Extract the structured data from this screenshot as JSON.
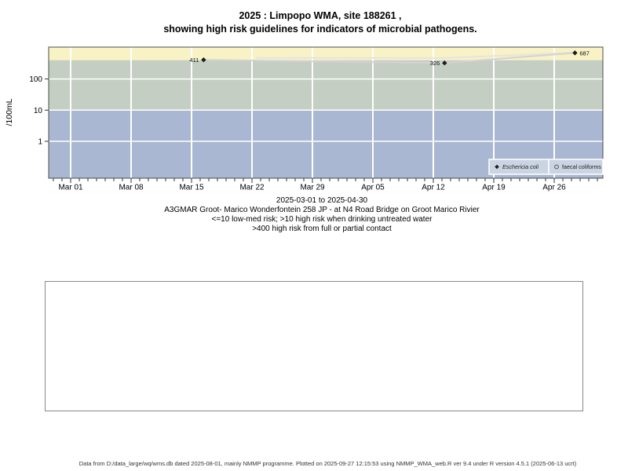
{
  "header": {
    "title_line1": "2025 : Limpopo WMA, site 188261 ,",
    "title_line2": "showing high risk guidelines for indicators of microbial pathogens."
  },
  "caption": {
    "lines": [
      "2025-03-01 to 2025-04-30",
      "A3GMAR Groot- Marico Wonderfontein 258 JP - at N4 Road Bridge on Groot Marico Rivier",
      "<=10 low-med risk; >10 high risk when drinking untreated water",
      ">400 high risk from full or partial contact"
    ]
  },
  "footer": {
    "text": "Data from D:/data_large/wq/wms.db dated 2025-08-01, mainly NMMP programme. Plotted on 2025-09-27 12:15:53 using NMMP_WMA_web.R ver 9.4 under R version 4.5.1 (2025-06-13 ucrt)"
  },
  "chart_data": {
    "type": "line",
    "y_scale": "log",
    "ylabel": "/100mL",
    "x_tick_labels": [
      "Mar 01",
      "Mar 08",
      "Mar 15",
      "Mar 22",
      "Mar 29",
      "Apr 05",
      "Apr 12",
      "Apr 19",
      "Apr 26"
    ],
    "x_tick_days": [
      0,
      7,
      14,
      21,
      28,
      35,
      42,
      49,
      56
    ],
    "x_minor_tick_day_range": [
      -2,
      61
    ],
    "y_tick_values": [
      1,
      10,
      100
    ],
    "ylim": [
      0.065,
      1100
    ],
    "grid": true,
    "risk_bands": [
      {
        "name": "high-risk-full-or-partial-contact",
        "min": 400,
        "max": 1100,
        "color": "#f8f2c4",
        "note": ">400 high risk from full or partial contact"
      },
      {
        "name": "high-risk-drinking-untreated",
        "min": 10,
        "max": 400,
        "color": "#c4cec2",
        "note": ">10 high risk when drinking untreated water"
      },
      {
        "name": "low-med-risk",
        "min": 0.065,
        "max": 10,
        "color": "#a9b7d3",
        "note": "<=10 low-med risk"
      }
    ],
    "series": [
      {
        "name": "Eschericia coli",
        "marker": "filled-diamond",
        "marker_color": "#1c1c1c",
        "line_color": "#d3d3d3",
        "points": [
          {
            "day": 15.4,
            "value": 411,
            "label": "411",
            "label_side": "left"
          },
          {
            "day": 43.3,
            "value": 326,
            "label": "326",
            "label_side": "left"
          },
          {
            "day": 58.4,
            "value": 687,
            "label": "687",
            "label_side": "right"
          }
        ]
      },
      {
        "name": "faecal coliforms",
        "marker": "open-circle",
        "marker_color": "#9aa0a8",
        "line_color": "#e4e4e4",
        "values_are_estimated_from_plot": true,
        "points": [
          {
            "day": 21.5,
            "value": 470
          },
          {
            "day": 43.3,
            "value": 470
          },
          {
            "day": 58.4,
            "value": 700
          }
        ]
      }
    ],
    "legend": {
      "position": "bottom-right",
      "fill": "#cbd4e2",
      "items": [
        {
          "label": "Eschericia coli",
          "marker": "filled-diamond",
          "italic": true
        },
        {
          "label": "faecal coliforms",
          "marker": "open-circle",
          "italic": false
        }
      ]
    }
  }
}
